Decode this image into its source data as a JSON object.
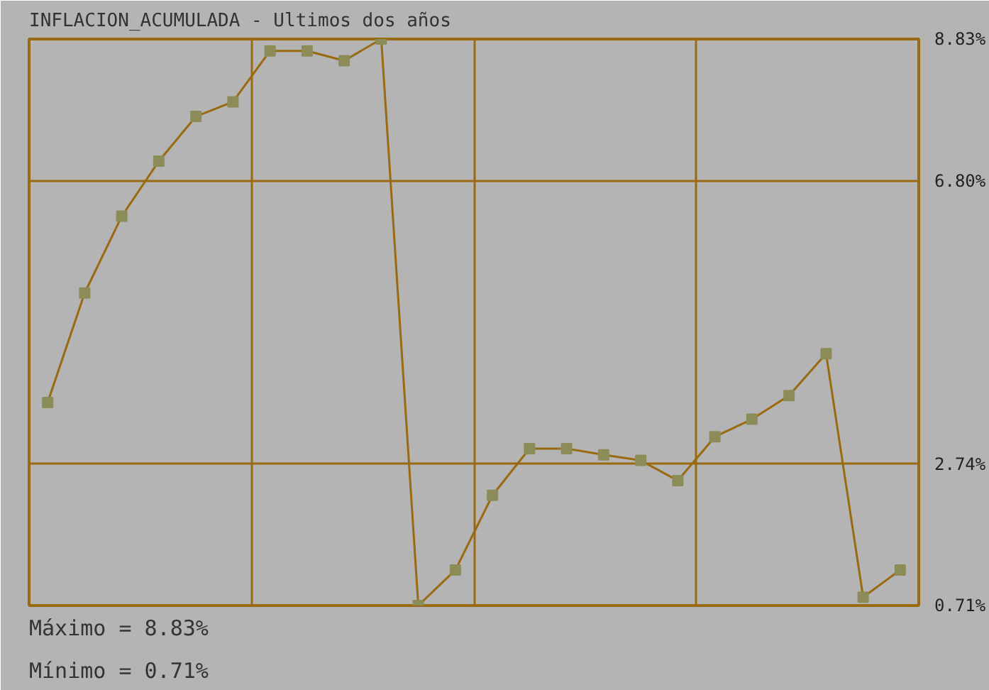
{
  "chart_data": {
    "type": "line",
    "title": "INFLACION_ACUMULADA - Ultimos dos años",
    "categories": [
      null,
      null,
      null,
      null,
      null,
      null,
      null,
      null,
      null,
      null,
      null,
      null,
      null,
      null,
      null,
      null,
      null,
      null,
      null,
      null,
      null,
      null,
      null,
      null
    ],
    "series": [
      {
        "color": "#9a6a10",
        "values": [
          3.62,
          5.19,
          6.29,
          7.08,
          7.72,
          7.93,
          8.66,
          8.66,
          8.52,
          8.83,
          0.71,
          1.22,
          2.29,
          2.96,
          2.96,
          2.87,
          2.79,
          2.5,
          3.13,
          3.38,
          3.72,
          4.32,
          0.83,
          1.22
        ]
      }
    ],
    "ylim": [
      0.71,
      8.83
    ],
    "yticks": [
      {
        "value": 0.71,
        "label": "0.71%"
      },
      {
        "value": 2.74,
        "label": "2.74%"
      },
      {
        "value": 6.8,
        "label": "6.80%"
      },
      {
        "value": 8.83,
        "label": "8.83%"
      }
    ],
    "grid": true,
    "marker": "square",
    "line_style": "solid",
    "tick_labels": "y",
    "annotations": [
      "Máximo = 8.83%",
      "Mínimo = 0.71%"
    ]
  }
}
